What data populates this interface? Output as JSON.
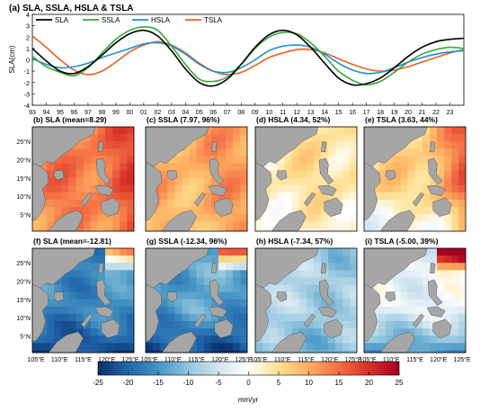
{
  "chart_data": [
    {
      "type": "line",
      "title": "(a) SLA, SSLA, HSLA & TSLA",
      "xlabel": "",
      "ylabel": "SLA(cm)",
      "xlim": [
        1993,
        2024
      ],
      "ylim": [
        -4,
        4
      ],
      "x_tick_labels": [
        "93",
        "94",
        "95",
        "96",
        "97",
        "98",
        "99",
        "00",
        "01",
        "02",
        "03",
        "04",
        "05",
        "06",
        "07",
        "08",
        "09",
        "10",
        "11",
        "12",
        "13",
        "14",
        "15",
        "16",
        "17",
        "18",
        "19",
        "20",
        "21",
        "22",
        "23"
      ],
      "y_ticks": [
        -4,
        -3,
        -2,
        -1,
        0,
        1,
        2,
        3,
        4
      ],
      "grid": false,
      "legend_position": "top-left",
      "x": [
        1993.0,
        1994.0,
        1995.0,
        1996.0,
        1997.0,
        1998.0,
        1999.0,
        2000.0,
        2001.0,
        2002.0,
        2003.0,
        2004.0,
        2005.0,
        2006.0,
        2007.0,
        2008.0,
        2009.0,
        2010.0,
        2011.0,
        2012.0,
        2013.0,
        2014.0,
        2015.0,
        2016.0,
        2017.0,
        2018.0,
        2019.0,
        2020.0,
        2021.0,
        2022.0,
        2023.0,
        2024.0
      ],
      "series": [
        {
          "name": "SLA",
          "color": "#000000",
          "values": [
            1.0,
            -0.1,
            -1.0,
            -1.2,
            -0.6,
            0.4,
            1.5,
            2.3,
            2.6,
            2.1,
            0.8,
            -0.8,
            -2.0,
            -2.3,
            -1.7,
            -0.4,
            1.1,
            2.2,
            2.6,
            2.2,
            1.1,
            -0.3,
            -1.6,
            -2.2,
            -2.1,
            -1.6,
            -0.7,
            0.3,
            1.1,
            1.6,
            1.8,
            1.9
          ]
        },
        {
          "name": "SSLA",
          "color": "#3aa63a",
          "values": [
            0.3,
            -0.6,
            -1.1,
            -1.4,
            -0.7,
            0.6,
            1.8,
            2.6,
            2.9,
            2.6,
            1.2,
            -0.4,
            -1.7,
            -1.9,
            -1.5,
            -0.4,
            1.0,
            2.0,
            2.4,
            2.3,
            1.5,
            0.3,
            -1.0,
            -1.8,
            -2.2,
            -1.9,
            -1.1,
            -0.2,
            0.5,
            0.9,
            1.1,
            1.0
          ]
        },
        {
          "name": "HSLA",
          "color": "#1e90d6",
          "values": [
            0.1,
            -0.4,
            -0.7,
            -0.6,
            -0.3,
            0.2,
            0.6,
            1.0,
            1.4,
            1.5,
            1.2,
            0.5,
            -0.4,
            -1.0,
            -1.1,
            -0.7,
            0.0,
            0.8,
            1.2,
            1.3,
            1.1,
            0.5,
            -0.3,
            -0.9,
            -1.2,
            -1.1,
            -0.7,
            -0.2,
            0.2,
            0.5,
            0.7,
            0.8
          ]
        },
        {
          "name": "TSLA",
          "color": "#e8611e",
          "values": [
            2.1,
            1.1,
            0.0,
            -0.9,
            -1.3,
            -1.0,
            -0.2,
            0.7,
            1.3,
            1.6,
            1.3,
            0.6,
            -0.3,
            -1.0,
            -1.3,
            -1.1,
            -0.5,
            0.2,
            0.6,
            0.9,
            0.9,
            0.6,
            0.1,
            -0.4,
            -0.8,
            -1.0,
            -0.9,
            -0.6,
            -0.2,
            0.2,
            0.6,
            0.9
          ]
        }
      ]
    },
    {
      "type": "heatmap",
      "colorbar": {
        "min": -25,
        "max": 25,
        "ticks": [
          "-25",
          "-20",
          "-15",
          "-10",
          "-5",
          "0",
          "5",
          "10",
          "15",
          "20",
          "25"
        ],
        "unit": "mm/yr",
        "stops": [
          "#08306b",
          "#2166ac",
          "#4393c3",
          "#92c5de",
          "#d1e5f0",
          "#ffffff",
          "#fee090",
          "#fdae61",
          "#f46d43",
          "#d73027",
          "#a50026"
        ]
      },
      "map_axes": {
        "y_tick_labels": [
          "5°N",
          "10°N",
          "15°N",
          "20°N",
          "25°N"
        ],
        "x_tick_labels": [
          "105°E",
          "110°E",
          "115°E",
          "120°E",
          "125°E"
        ]
      },
      "panels": [
        {
          "id": "b",
          "title": "(b) SLA (mean=8.29)",
          "mean": 8.29
        },
        {
          "id": "c",
          "title": "(c) SSLA (7.97, 96%)",
          "mean": 7.97,
          "share_percent": 96
        },
        {
          "id": "d",
          "title": "(d) HSLA (4.34, 52%)",
          "mean": 4.34,
          "share_percent": 52
        },
        {
          "id": "e",
          "title": "(e) TSLA (3.63, 44%)",
          "mean": 3.63,
          "share_percent": 44
        },
        {
          "id": "f",
          "title": "(f) SLA (mean=-12.81)",
          "mean": -12.81
        },
        {
          "id": "g",
          "title": "(g) SSLA (-12.34, 96%)",
          "mean": -12.34,
          "share_percent": 96
        },
        {
          "id": "h",
          "title": "(h) HSLA (-7.34, 57%)",
          "mean": -7.34,
          "share_percent": 57
        },
        {
          "id": "i",
          "title": "(i) TSLA (-5.00, 39%)",
          "mean": -5.0,
          "share_percent": 39
        }
      ]
    }
  ]
}
